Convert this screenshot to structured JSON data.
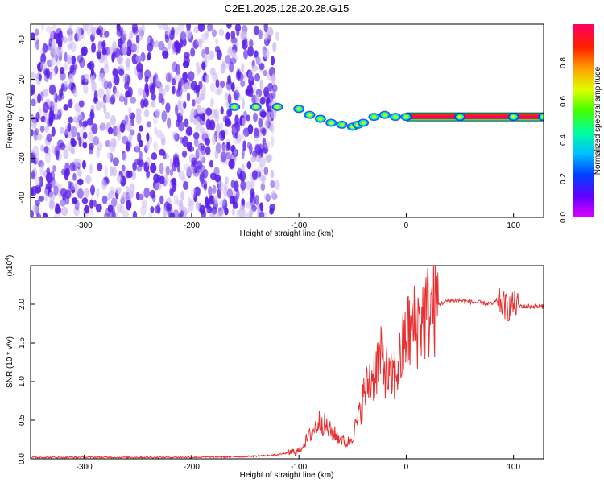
{
  "figure_title": "C2E1.2025.128.20.28.G15",
  "colors": {
    "snr_line": "#e83030",
    "blob": "#5a1ee8",
    "blob_light": "#c9b5f2",
    "colorbar": [
      "#e000ff",
      "#6000ff",
      "#0040ff",
      "#00c0ff",
      "#00ffa0",
      "#40ff00",
      "#e0ff00",
      "#ffa000",
      "#ff2000",
      "#ff0060"
    ]
  },
  "chart_data": [
    {
      "type": "heatmap",
      "xlabel": "Height of straight line (km)",
      "ylabel": "Frequency (Hz)",
      "xlim": [
        -350,
        128
      ],
      "ylim": [
        -50,
        48
      ],
      "xticks": [
        -300,
        -200,
        -100,
        0,
        100
      ],
      "yticks": [
        -40,
        -20,
        0,
        20,
        40
      ],
      "colorbar": {
        "label": "Normalized spectral amplitude",
        "range": [
          0,
          1
        ],
        "ticks": [
          "0.0",
          "0.2",
          "0.4",
          "0.6",
          "0.8"
        ]
      },
      "noise_region": {
        "x_range": [
          -350,
          -120
        ],
        "freq_range": [
          -50,
          48
        ],
        "amplitude": "0.05-0.2"
      },
      "signal_trace": [
        {
          "x": -160,
          "f": 6
        },
        {
          "x": -140,
          "f": 6
        },
        {
          "x": -120,
          "f": 6
        },
        {
          "x": -100,
          "f": 5
        },
        {
          "x": -90,
          "f": 2
        },
        {
          "x": -80,
          "f": 0
        },
        {
          "x": -70,
          "f": -2
        },
        {
          "x": -60,
          "f": -3
        },
        {
          "x": -50,
          "f": -4
        },
        {
          "x": -45,
          "f": -3
        },
        {
          "x": -40,
          "f": -2
        },
        {
          "x": -30,
          "f": 1
        },
        {
          "x": -20,
          "f": 2
        },
        {
          "x": -10,
          "f": 1
        },
        {
          "x": 0,
          "f": 1
        },
        {
          "x": 50,
          "f": 1
        },
        {
          "x": 100,
          "f": 1
        },
        {
          "x": 128,
          "f": 1
        }
      ],
      "tone_line": {
        "freq": 1,
        "x_range": [
          0,
          128
        ],
        "amplitude": 1.0
      }
    },
    {
      "type": "line",
      "xlabel": "Height of straight line (km)",
      "ylabel": "SNR (10 * v/v)",
      "y_multiplier": "(x10",
      "y_multiplier_exp": "4",
      "xlim": [
        -350,
        128
      ],
      "ylim": [
        0,
        2.5
      ],
      "xticks": [
        -300,
        -200,
        -100,
        0,
        100
      ],
      "yticks": [
        "0.0",
        "0.5",
        "1.0",
        "1.5",
        "2.0"
      ],
      "series": [
        {
          "x": [
            -350,
            -300,
            -250,
            -200,
            -150,
            -120,
            -110,
            -100,
            -90,
            -80,
            -70,
            -60,
            -55,
            -50,
            -45,
            -40,
            -35,
            -30,
            -25,
            -20,
            -15,
            -10,
            -5,
            0,
            10,
            20,
            30,
            40,
            50,
            60,
            70,
            80,
            85,
            90,
            95,
            100,
            105,
            110,
            128
          ],
          "y": [
            0.02,
            0.02,
            0.02,
            0.02,
            0.03,
            0.05,
            0.08,
            0.1,
            0.3,
            0.5,
            0.35,
            0.25,
            0.2,
            0.3,
            0.5,
            0.8,
            1.0,
            1.1,
            1.3,
            1.2,
            1.0,
            1.1,
            1.3,
            1.6,
            1.75,
            1.9,
            2.0,
            2.05,
            2.05,
            2.03,
            2.02,
            2.0,
            2.05,
            2.0,
            1.95,
            2.0,
            1.98,
            1.97,
            1.97
          ]
        }
      ]
    }
  ]
}
